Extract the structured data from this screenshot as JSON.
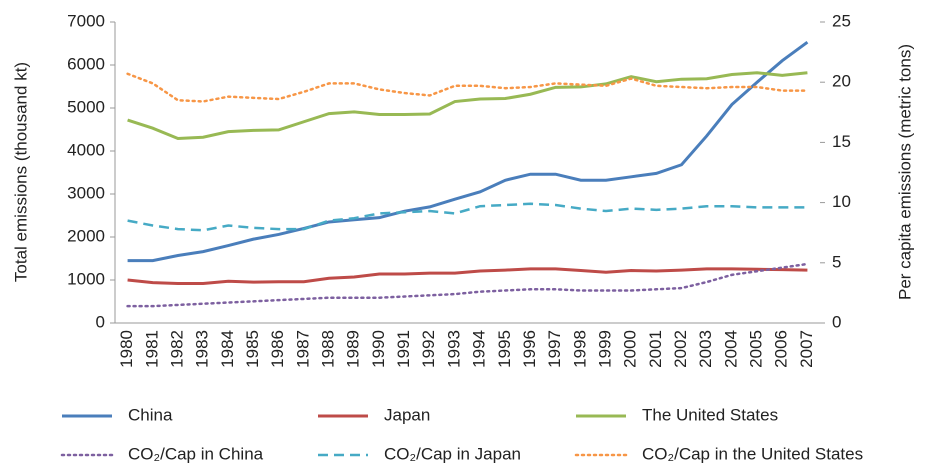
{
  "chart_data": {
    "type": "line",
    "ylabel": "Total emissions (thousand kt)",
    "y2label": "Per capita emissions (metric tons)",
    "categories": [
      "1980",
      "1981",
      "1982",
      "1983",
      "1984",
      "1985",
      "1986",
      "1987",
      "1988",
      "1989",
      "1990",
      "1991",
      "1992",
      "1993",
      "1994",
      "1995",
      "1996",
      "1997",
      "1998",
      "1999",
      "2000",
      "2001",
      "2002",
      "2003",
      "2004",
      "2005",
      "2006",
      "2007"
    ],
    "ylim": [
      0,
      7000
    ],
    "yticks": [
      0,
      1000,
      2000,
      3000,
      4000,
      5000,
      6000,
      7000
    ],
    "y2lim": [
      0,
      25
    ],
    "y2ticks": [
      0,
      5,
      10,
      15,
      20,
      25
    ],
    "series": [
      {
        "name": "China",
        "color": "#4a7ebb",
        "style": "solid",
        "values": [
          1450,
          1450,
          1570,
          1660,
          1800,
          1950,
          2060,
          2200,
          2350,
          2400,
          2450,
          2600,
          2700,
          2880,
          3050,
          3320,
          3460,
          3460,
          3320,
          3320,
          3400,
          3480,
          3680,
          4350,
          5080,
          5600,
          6100,
          6530
        ]
      },
      {
        "name": "Japan",
        "color": "#be4b48",
        "style": "solid",
        "values": [
          1000,
          940,
          920,
          920,
          970,
          950,
          960,
          960,
          1040,
          1070,
          1140,
          1140,
          1160,
          1160,
          1210,
          1230,
          1260,
          1260,
          1220,
          1180,
          1220,
          1210,
          1230,
          1260,
          1260,
          1250,
          1240,
          1230
        ]
      },
      {
        "name": "The United States",
        "color": "#98b954",
        "style": "solid",
        "values": [
          4720,
          4530,
          4290,
          4320,
          4450,
          4480,
          4490,
          4680,
          4870,
          4910,
          4850,
          4850,
          4860,
          5150,
          5210,
          5220,
          5320,
          5480,
          5490,
          5560,
          5730,
          5610,
          5670,
          5680,
          5780,
          5820,
          5760,
          5820
        ]
      },
      {
        "name": "CO₂/Cap in China",
        "color": "#7d60a0",
        "style": "dotted",
        "axis": "y2",
        "values": [
          1.4,
          1.4,
          1.5,
          1.6,
          1.7,
          1.8,
          1.9,
          2.0,
          2.1,
          2.1,
          2.1,
          2.2,
          2.3,
          2.4,
          2.6,
          2.7,
          2.8,
          2.8,
          2.7,
          2.7,
          2.7,
          2.8,
          2.9,
          3.4,
          4.0,
          4.3,
          4.6,
          4.9
        ]
      },
      {
        "name": "CO₂/Cap in Japan",
        "color": "#46aac5",
        "style": "dashed",
        "axis": "y2",
        "values": [
          8.5,
          8.1,
          7.8,
          7.7,
          8.1,
          7.9,
          7.8,
          7.8,
          8.5,
          8.7,
          9.1,
          9.2,
          9.3,
          9.1,
          9.7,
          9.8,
          9.9,
          9.8,
          9.5,
          9.3,
          9.5,
          9.4,
          9.5,
          9.7,
          9.7,
          9.6,
          9.6,
          9.6
        ]
      },
      {
        "name": "CO₂/Cap in the United States",
        "color": "#f79646",
        "style": "dotted",
        "axis": "y2",
        "values": [
          20.7,
          19.9,
          18.5,
          18.4,
          18.8,
          18.7,
          18.6,
          19.2,
          19.9,
          19.9,
          19.4,
          19.1,
          18.9,
          19.7,
          19.7,
          19.5,
          19.6,
          19.9,
          19.8,
          19.7,
          20.3,
          19.7,
          19.6,
          19.5,
          19.6,
          19.6,
          19.3,
          19.3
        ]
      }
    ]
  }
}
